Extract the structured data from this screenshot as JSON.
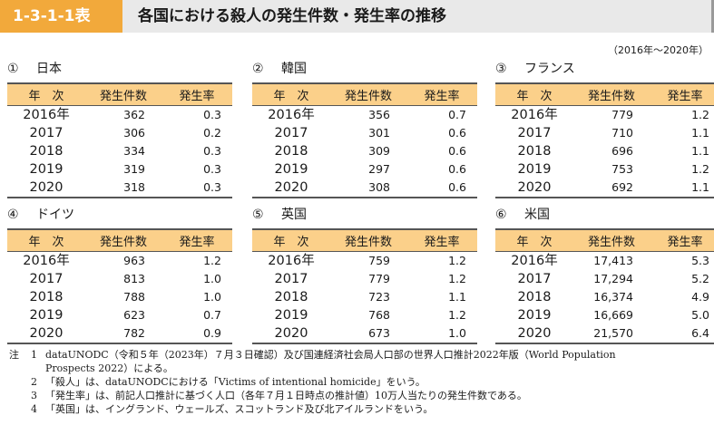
{
  "title": {
    "id": "1-3-1-1表",
    "text": "各国における殺人の発生件数・発生率の推移"
  },
  "period": "（2016年～2020年）",
  "columns": [
    "年　次",
    "発生件数",
    "発生率"
  ],
  "panels": [
    {
      "num": "①",
      "name": "日本",
      "rows": [
        {
          "year": "2016年",
          "count": "362",
          "rate": "0.3"
        },
        {
          "year": "2017",
          "count": "306",
          "rate": "0.2"
        },
        {
          "year": "2018",
          "count": "334",
          "rate": "0.3"
        },
        {
          "year": "2019",
          "count": "319",
          "rate": "0.3"
        },
        {
          "year": "2020",
          "count": "318",
          "rate": "0.3"
        }
      ]
    },
    {
      "num": "②",
      "name": "韓国",
      "rows": [
        {
          "year": "2016年",
          "count": "356",
          "rate": "0.7"
        },
        {
          "year": "2017",
          "count": "301",
          "rate": "0.6"
        },
        {
          "year": "2018",
          "count": "309",
          "rate": "0.6"
        },
        {
          "year": "2019",
          "count": "297",
          "rate": "0.6"
        },
        {
          "year": "2020",
          "count": "308",
          "rate": "0.6"
        }
      ]
    },
    {
      "num": "③",
      "name": "フランス",
      "rows": [
        {
          "year": "2016年",
          "count": "779",
          "rate": "1.2"
        },
        {
          "year": "2017",
          "count": "710",
          "rate": "1.1"
        },
        {
          "year": "2018",
          "count": "696",
          "rate": "1.1"
        },
        {
          "year": "2019",
          "count": "753",
          "rate": "1.2"
        },
        {
          "year": "2020",
          "count": "692",
          "rate": "1.1"
        }
      ]
    },
    {
      "num": "④",
      "name": "ドイツ",
      "rows": [
        {
          "year": "2016年",
          "count": "963",
          "rate": "1.2"
        },
        {
          "year": "2017",
          "count": "813",
          "rate": "1.0"
        },
        {
          "year": "2018",
          "count": "788",
          "rate": "1.0"
        },
        {
          "year": "2019",
          "count": "623",
          "rate": "0.7"
        },
        {
          "year": "2020",
          "count": "782",
          "rate": "0.9"
        }
      ]
    },
    {
      "num": "⑤",
      "name": "英国",
      "rows": [
        {
          "year": "2016年",
          "count": "759",
          "rate": "1.2"
        },
        {
          "year": "2017",
          "count": "779",
          "rate": "1.2"
        },
        {
          "year": "2018",
          "count": "723",
          "rate": "1.1"
        },
        {
          "year": "2019",
          "count": "768",
          "rate": "1.2"
        },
        {
          "year": "2020",
          "count": "673",
          "rate": "1.0"
        }
      ]
    },
    {
      "num": "⑥",
      "name": "米国",
      "rows": [
        {
          "year": "2016年",
          "count": "17,413",
          "rate": "5.3"
        },
        {
          "year": "2017",
          "count": "17,294",
          "rate": "5.2"
        },
        {
          "year": "2018",
          "count": "16,374",
          "rate": "4.9"
        },
        {
          "year": "2019",
          "count": "16,669",
          "rate": "5.0"
        },
        {
          "year": "2020",
          "count": "21,570",
          "rate": "6.4"
        }
      ]
    }
  ],
  "notes": {
    "lead": "注",
    "items": [
      {
        "num": "1",
        "text": "dataUNODC（令和５年（2023年）７月３日確認）及び国連経済社会局人口部の世界人口推計2022年版（World Population",
        "cont": "Prospects 2022）による。"
      },
      {
        "num": "2",
        "text": "「殺人」は、dataUNODCにおける「Victims of intentional homicide」をいう。"
      },
      {
        "num": "3",
        "text": "「発生率」は、前記人口推計に基づく人口（各年７月１日時点の推計値）10万人当たりの発生件数である。"
      },
      {
        "num": "4",
        "text": "「英国」は、イングランド、ウェールズ、スコットランド及び北アイルランドをいう。"
      }
    ]
  },
  "colors": {
    "accent": "#f2a93b",
    "header_fill": "#fbd08a",
    "title_bg": "#e9e9e9"
  }
}
